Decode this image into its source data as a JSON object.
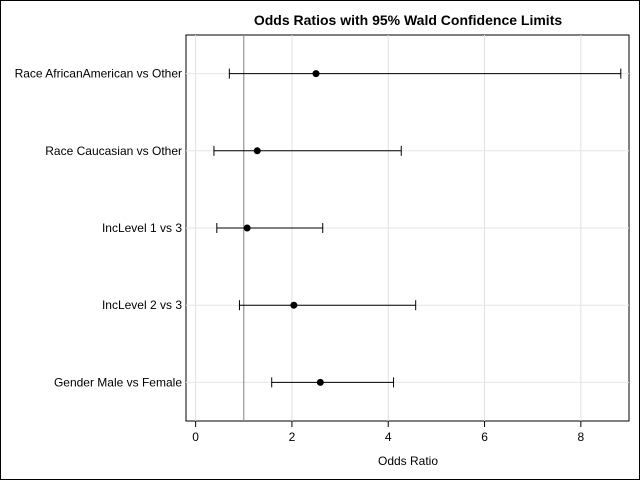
{
  "chart_data": {
    "type": "scatter",
    "title": "Odds Ratios with 95% Wald Confidence Limits",
    "xlabel": "Odds Ratio",
    "ylabel": "",
    "xlim": [
      -0.2,
      9.0
    ],
    "xticks": [
      0,
      2,
      4,
      6,
      8
    ],
    "reference_line": 1,
    "grid": true,
    "series": [
      {
        "categories": [
          "Race AfricanAmerican vs Other",
          "Race Caucasian vs Other",
          "IncLevel 1 vs 3",
          "IncLevel 2 vs 3",
          "Gender Male vs Female"
        ],
        "estimate": [
          2.5,
          1.28,
          1.07,
          2.04,
          2.59
        ],
        "lower": [
          0.7,
          0.38,
          0.44,
          0.91,
          1.58
        ],
        "upper": [
          8.83,
          4.27,
          2.64,
          4.57,
          4.11
        ]
      }
    ]
  }
}
